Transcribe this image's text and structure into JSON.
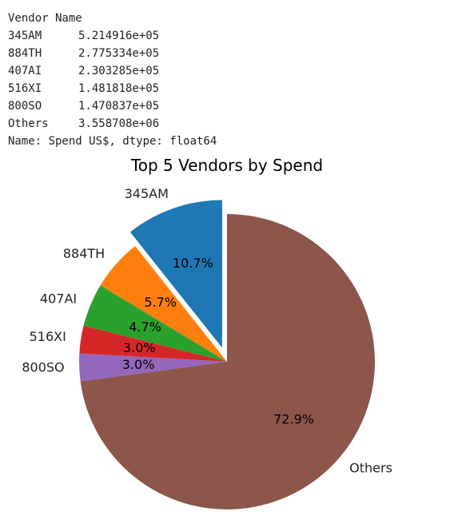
{
  "output": {
    "header": "Vendor Name",
    "rows": [
      {
        "name": "345AM",
        "value": "5.214916e+05"
      },
      {
        "name": "884TH",
        "value": "2.775334e+05"
      },
      {
        "name": "407AI",
        "value": "2.303285e+05"
      },
      {
        "name": "516XI",
        "value": "1.481818e+05"
      },
      {
        "name": "800SO",
        "value": "1.470837e+05"
      },
      {
        "name": "Others",
        "value": "3.558708e+06"
      }
    ],
    "footer": "Name: Spend US$, dtype: float64"
  },
  "chart_data": {
    "type": "pie",
    "title": "Top 5 Vendors by Spend",
    "categories": [
      "345AM",
      "884TH",
      "407AI",
      "516XI",
      "800SO",
      "Others"
    ],
    "values": [
      521491.6,
      277533.4,
      230328.5,
      148181.8,
      147083.7,
      3558708
    ],
    "percent_labels": [
      "10.7%",
      "5.7%",
      "4.7%",
      "3.0%",
      "3.0%",
      "72.9%"
    ],
    "colors": [
      "#1f77b4",
      "#ff7f0e",
      "#2ca02c",
      "#d62728",
      "#9467bd",
      "#8c564b"
    ],
    "explode": [
      0.1,
      0,
      0,
      0,
      0,
      0
    ],
    "start_angle_deg": 90,
    "direction": "counterclockwise"
  }
}
